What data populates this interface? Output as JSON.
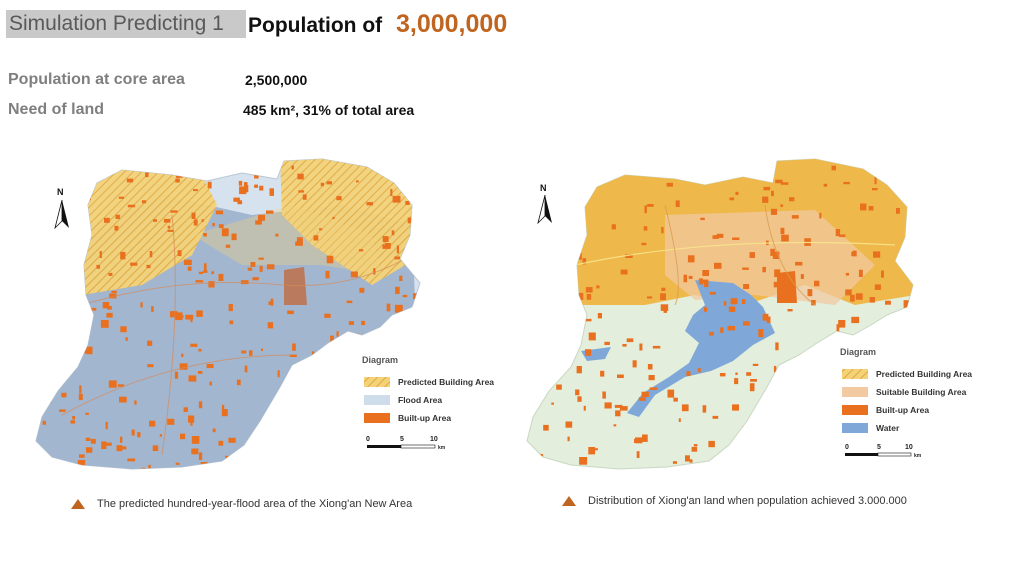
{
  "header": {
    "tag": "Simulation Predicting 1",
    "title": "Population of",
    "title_value": "3,000,000"
  },
  "stats": [
    {
      "label": "Population at core area",
      "value": "2,500,000"
    },
    {
      "label": "Need of land",
      "value": "485 km², 31% of total area"
    }
  ],
  "map_left": {
    "north": "N",
    "legend_title": "Diagram",
    "legend": [
      {
        "label": "Predicted Building Area",
        "color": "#f3d27a"
      },
      {
        "label": "Flood Area",
        "color": "#cfdcea"
      },
      {
        "label": "Built-up Area",
        "color": "#e8701f"
      }
    ],
    "scale": [
      "0",
      "5",
      "10"
    ],
    "scale_unit": "km",
    "caption": "The predicted hundred-year-flood area of the Xiong'an New Area"
  },
  "map_right": {
    "north": "N",
    "legend_title": "Diagram",
    "legend": [
      {
        "label": "Predicted Building Area",
        "color": "#f3d27a"
      },
      {
        "label": "Suitable Building Area",
        "color": "#f2c9a0"
      },
      {
        "label": "Built-up Area",
        "color": "#e8701f"
      },
      {
        "label": "Water",
        "color": "#7fa8d8"
      }
    ],
    "scale": [
      "0",
      "5",
      "10"
    ],
    "scale_unit": "km",
    "caption": "Distribution of Xiong'an land when population achieved 3.000.000"
  },
  "colors": {
    "accent": "#c0651f",
    "flood": "#a3b6cf",
    "build": "#efb84a",
    "builtup": "#e8701f",
    "water": "#7fa8d8",
    "base": "#e3eedd"
  }
}
